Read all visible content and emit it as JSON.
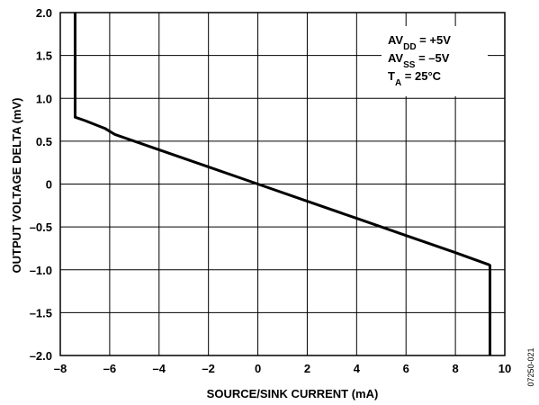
{
  "chart_data": {
    "type": "line",
    "title": "",
    "xlabel": "SOURCE/SINK CURRENT (mA)",
    "ylabel": "OUTPUT VOLTAGE DELTA (mV)",
    "xlim": [
      -8,
      10
    ],
    "ylim": [
      -2.0,
      2.0
    ],
    "x_ticks": [
      -8,
      -6,
      -4,
      -2,
      0,
      2,
      4,
      6,
      8,
      10
    ],
    "x_tick_labels": [
      "–8",
      "–6",
      "–4",
      "–2",
      "0",
      "2",
      "4",
      "6",
      "8",
      "10"
    ],
    "y_ticks": [
      2.0,
      1.5,
      1.0,
      0.5,
      0,
      -0.5,
      -1.0,
      -1.5,
      -2.0
    ],
    "y_tick_labels": [
      "2.0",
      "1.5",
      "1.0",
      "0.5",
      "0",
      "–0.5",
      "–1.0",
      "–1.5",
      "–2.0"
    ],
    "grid": true,
    "series": [
      {
        "x": [
          -7.4,
          -7.4,
          -7.0,
          -6.2,
          -5.8,
          -4.0,
          -2.0,
          0.0,
          2.0,
          4.0,
          6.0,
          8.0,
          9.35,
          9.4,
          9.4
        ],
        "y": [
          2.0,
          0.78,
          0.74,
          0.65,
          0.58,
          0.4,
          0.2,
          0.0,
          -0.2,
          -0.4,
          -0.6,
          -0.8,
          -0.94,
          -0.95,
          -2.0
        ]
      }
    ],
    "annotations": [
      {
        "prefix": "AV",
        "subscript": "DD",
        "suffix": " = +5V"
      },
      {
        "prefix": "AV",
        "subscript": "SS",
        "suffix": " = –5V"
      },
      {
        "prefix": "T",
        "subscript": "A",
        "suffix": " = 25°C"
      }
    ],
    "figure_code": "07250-021",
    "colors": {
      "line": "#000000",
      "grid": "#000000",
      "background": "#ffffff"
    }
  }
}
